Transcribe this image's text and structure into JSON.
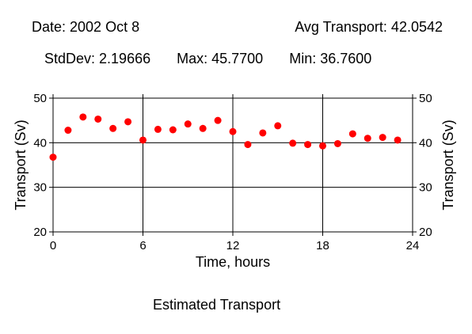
{
  "header": {
    "date": "Date: 2002 Oct 8",
    "avg": "Avg Transport: 42.0542",
    "stddev": "StdDev: 2.19666",
    "max": "Max: 45.7700",
    "min": "Min: 36.7600"
  },
  "caption": "Estimated Transport",
  "colors": {
    "marker": "#ff0000",
    "axis": "#000000",
    "grid": "#000000"
  },
  "chart_data": {
    "type": "scatter",
    "xlabel": "Time, hours",
    "ylabel": "Transport (Sv)",
    "ylabel_right": "Transport (Sv)",
    "xlim": [
      0,
      24
    ],
    "ylim": [
      20,
      50
    ],
    "x_ticks": [
      "0",
      "6",
      "12",
      "18",
      "24"
    ],
    "y_ticks": [
      "20",
      "30",
      "40",
      "50"
    ],
    "grid": true,
    "series": [
      {
        "x": [
          0,
          1,
          2,
          3,
          4,
          5,
          6,
          7,
          8,
          9,
          10,
          11,
          12,
          13,
          14,
          15,
          16,
          17,
          18,
          19,
          20,
          21,
          22,
          23
        ],
        "values": [
          36.76,
          42.8,
          45.77,
          45.3,
          43.2,
          44.7,
          40.6,
          43.0,
          42.9,
          44.2,
          43.2,
          45.0,
          42.5,
          39.6,
          42.2,
          43.8,
          39.9,
          39.6,
          39.3,
          39.8,
          42.0,
          41.0,
          41.2,
          40.6
        ]
      }
    ]
  }
}
